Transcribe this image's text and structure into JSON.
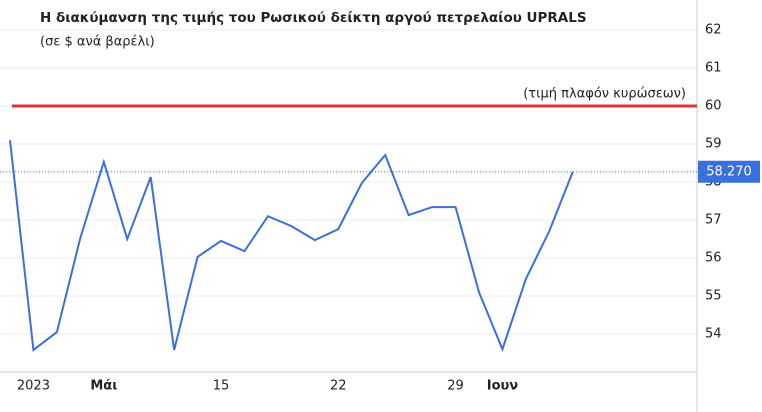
{
  "chart_data": {
    "type": "line",
    "title": "Η διακύμανση της τιμής του Ρωσικού δείκτη αργού πετρελαίου UPRALS",
    "subtitle": "(σε $ ανά βαρέλι)",
    "categories": [
      null,
      "2023",
      null,
      null,
      "Μάι",
      null,
      null,
      null,
      null,
      "15",
      null,
      null,
      null,
      null,
      "22",
      null,
      null,
      null,
      null,
      "29",
      null,
      "Ιουν",
      null,
      null,
      null
    ],
    "bold_categories": [
      "Μάι",
      "Ιουν"
    ],
    "series": [
      {
        "name": "UPRALS",
        "color": "#3a6fdc",
        "values": [
          59.1,
          53.58,
          54.05,
          56.53,
          58.53,
          56.5,
          58.13,
          53.58,
          56.03,
          56.45,
          56.18,
          57.1,
          56.84,
          56.47,
          56.76,
          57.97,
          58.71,
          57.13,
          57.34,
          57.34,
          55.1,
          53.6,
          55.45,
          56.71,
          58.27
        ]
      }
    ],
    "ylim": [
      53,
      62.79
    ],
    "yticks": [
      54,
      55,
      56,
      57,
      58,
      59,
      60,
      61,
      62
    ],
    "grid": true,
    "reference_line": {
      "value": 60,
      "label": "(τιμή πλαφόν κυρώσεων)",
      "color": "#d9363e"
    },
    "current_value": {
      "value": 58.27,
      "label": "58.270",
      "color": "#3a6fdc"
    }
  }
}
